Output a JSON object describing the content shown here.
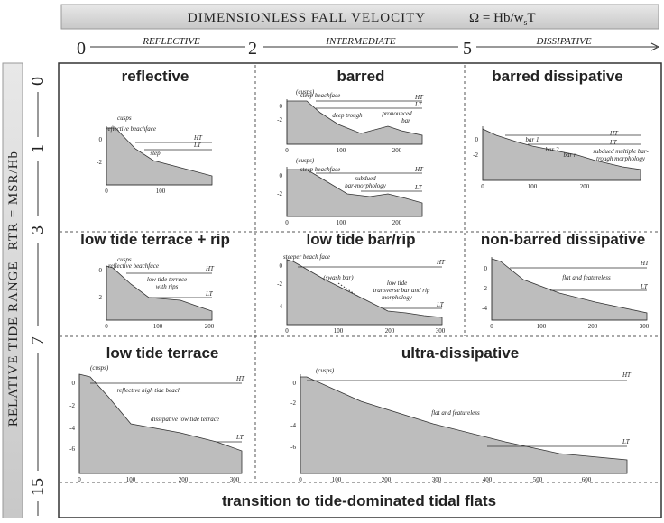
{
  "header": {
    "title": "DIMENSIONLESS FALL VELOCITY",
    "formula": "Ω = Hb/w",
    "formula_sub": "s",
    "formula_end": "T"
  },
  "x_axis": {
    "ticks": [
      "0",
      "2",
      "5"
    ],
    "zones": [
      "REFLECTIVE",
      "INTERMEDIATE",
      "DISSIPATIVE"
    ]
  },
  "y_axis": {
    "title": "RELATIVE TIDE RANGE",
    "formula": "RTR = MSR/Hb",
    "ticks": [
      "0",
      "1",
      "3",
      "7",
      "15"
    ]
  },
  "cells": [
    {
      "title": "reflective",
      "profiles": [
        {
          "yticks": [
            "0",
            "-2"
          ],
          "xticks": [
            "0",
            "100"
          ],
          "labels": [
            "cusps",
            "reflective beachface",
            "HT",
            "LT",
            "step"
          ]
        }
      ]
    },
    {
      "title": "barred",
      "profiles": [
        {
          "yticks": [
            "0",
            "-2"
          ],
          "xticks": [
            "0",
            "100",
            "200"
          ],
          "labels": [
            "(cusps)",
            "steep beachface",
            "HT",
            "LT",
            "deep trough",
            "pronounced",
            "bar"
          ]
        },
        {
          "yticks": [
            "0",
            "-2"
          ],
          "xticks": [
            "0",
            "100",
            "200"
          ],
          "labels": [
            "(cusps)",
            "steep beachface",
            "HT",
            "subdued",
            "bar-morphology",
            "LT"
          ]
        }
      ]
    },
    {
      "title": "barred dissipative",
      "profiles": [
        {
          "yticks": [
            "0",
            "-2"
          ],
          "xticks": [
            "0",
            "100",
            "200"
          ],
          "labels": [
            "HT",
            "bar 1",
            "LT",
            "bar 2",
            "bar n",
            "subdued multiple bar-",
            "trough morphology"
          ]
        }
      ]
    },
    {
      "title": "low tide terrace + rip",
      "profiles": [
        {
          "yticks": [
            "0",
            "-2"
          ],
          "xticks": [
            "0",
            "100",
            "200"
          ],
          "labels": [
            "cusps",
            "reflective beachface",
            "HT",
            "low tide terrace",
            "with rips",
            "LT"
          ]
        }
      ]
    },
    {
      "title": "low tide bar/rip",
      "profiles": [
        {
          "yticks": [
            "0",
            "-2",
            "-4"
          ],
          "xticks": [
            "0",
            "100",
            "200",
            "300"
          ],
          "labels": [
            "steeper beach face",
            "HT",
            "(swash bar)",
            "low tide",
            "transverse bar and rip",
            "morphology",
            "LT"
          ]
        }
      ]
    },
    {
      "title": "non-barred dissipative",
      "profiles": [
        {
          "yticks": [
            "0",
            "-2",
            "-4"
          ],
          "xticks": [
            "0",
            "100",
            "200",
            "300"
          ],
          "labels": [
            "flat and featureless",
            "HT",
            "LT"
          ]
        }
      ]
    },
    {
      "title": "low tide terrace",
      "profiles": [
        {
          "yticks": [
            "0",
            "-2",
            "-4",
            "-6"
          ],
          "xticks": [
            "0",
            "100",
            "200",
            "300"
          ],
          "labels": [
            "(cusps)",
            "reflective high tide beach",
            "dissipative low tide terrace",
            "HT",
            "LT"
          ]
        }
      ]
    },
    {
      "title": "ultra-dissipative",
      "profiles": [
        {
          "yticks": [
            "0",
            "-2",
            "-4",
            "-6"
          ],
          "xticks": [
            "0",
            "100",
            "200",
            "300",
            "400",
            "500",
            "600"
          ],
          "labels": [
            "(cusps)",
            "HT",
            "flat and featureless",
            "LT"
          ]
        }
      ]
    }
  ],
  "footer": "transition to tide-dominated tidal flats"
}
